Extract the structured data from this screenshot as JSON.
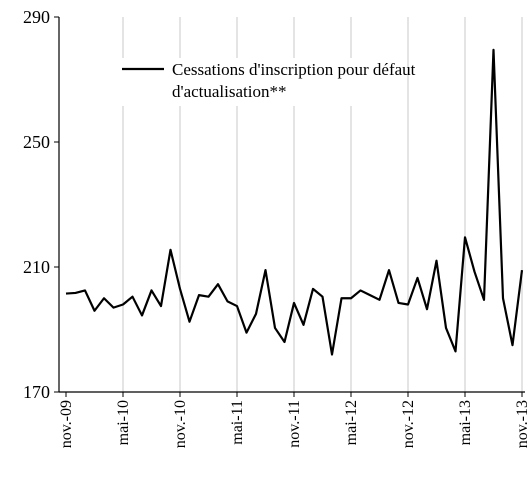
{
  "chart_data": {
    "type": "line",
    "title": "",
    "xlabel": "",
    "ylabel": "",
    "ylim": [
      170,
      290
    ],
    "yticks": [
      170,
      210,
      250,
      290
    ],
    "grid": "vertical",
    "legend": {
      "placement": "top-center",
      "lines": [
        "Cessations d'inscription pour défaut",
        "d'actualisation**"
      ]
    },
    "x_tick_labels": [
      "nov.-09",
      "mai-10",
      "nov.-10",
      "mai-11",
      "nov.-11",
      "mai-12",
      "nov.-12",
      "mai-13",
      "nov.-13"
    ],
    "x_tick_index": [
      0,
      6,
      12,
      18,
      24,
      30,
      36,
      42,
      48
    ],
    "x": [
      "2009-11",
      "2009-12",
      "2010-01",
      "2010-02",
      "2010-03",
      "2010-04",
      "2010-05",
      "2010-06",
      "2010-07",
      "2010-08",
      "2010-09",
      "2010-10",
      "2010-11",
      "2010-12",
      "2011-01",
      "2011-02",
      "2011-03",
      "2011-04",
      "2011-05",
      "2011-06",
      "2011-07",
      "2011-08",
      "2011-09",
      "2011-10",
      "2011-11",
      "2011-12",
      "2012-01",
      "2012-02",
      "2012-03",
      "2012-04",
      "2012-05",
      "2012-06",
      "2012-07",
      "2012-08",
      "2012-09",
      "2012-10",
      "2012-11",
      "2012-12",
      "2013-01",
      "2013-02",
      "2013-03",
      "2013-04",
      "2013-05",
      "2013-06",
      "2013-07",
      "2013-08",
      "2013-09",
      "2013-10",
      "2013-11"
    ],
    "series": [
      {
        "name": "Cessations d'inscription pour défaut d'actualisation**",
        "color": "#000000",
        "values": [
          201.5,
          201.7,
          202.5,
          196,
          200,
          197,
          198,
          200.5,
          194.5,
          202.5,
          197.5,
          215.5,
          203,
          192.5,
          201,
          200.5,
          204.5,
          199,
          197.5,
          189,
          195,
          209,
          190.5,
          186,
          198.5,
          191.5,
          203,
          200.5,
          182,
          200,
          200,
          202.5,
          201,
          199.5,
          209,
          198.5,
          198,
          206.5,
          196.5,
          212,
          190.5,
          183,
          219.5,
          208.5,
          199.5,
          279.5,
          200,
          185,
          209
        ]
      }
    ]
  }
}
